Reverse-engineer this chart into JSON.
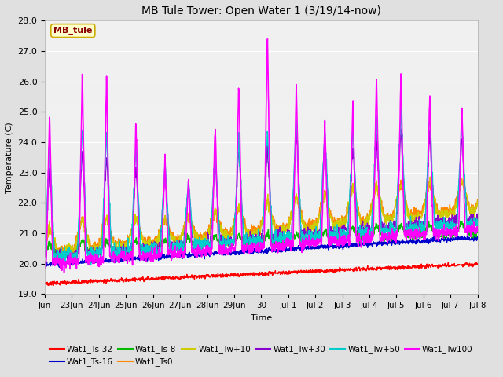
{
  "title": "MB Tule Tower: Open Water 1 (3/19/14-now)",
  "xlabel": "Time",
  "ylabel": "Temperature (C)",
  "ylim": [
    19.0,
    28.0
  ],
  "yticks": [
    19.0,
    20.0,
    21.0,
    22.0,
    23.0,
    24.0,
    25.0,
    26.0,
    27.0,
    28.0
  ],
  "fig_bg_color": "#e0e0e0",
  "plot_bg_color": "#f0f0f0",
  "series_order": [
    "Wat1_Ts-32",
    "Wat1_Ts-16",
    "Wat1_Ts-8",
    "Wat1_Ts0",
    "Wat1_Tw+10",
    "Wat1_Tw+30",
    "Wat1_Tw+50",
    "Wat1_Tw100"
  ],
  "series": {
    "Wat1_Ts-32": {
      "color": "#ff0000",
      "lw": 1.0
    },
    "Wat1_Ts-16": {
      "color": "#0000cc",
      "lw": 1.0
    },
    "Wat1_Ts-8": {
      "color": "#00bb00",
      "lw": 1.0
    },
    "Wat1_Ts0": {
      "color": "#ff8800",
      "lw": 1.0
    },
    "Wat1_Tw+10": {
      "color": "#cccc00",
      "lw": 1.0
    },
    "Wat1_Tw+30": {
      "color": "#8800cc",
      "lw": 1.0
    },
    "Wat1_Tw+50": {
      "color": "#00cccc",
      "lw": 1.0
    },
    "Wat1_Tw100": {
      "color": "#ff00ff",
      "lw": 1.2
    }
  },
  "x_start": 0,
  "x_end": 16,
  "xtick_positions": [
    0,
    1,
    2,
    3,
    4,
    5,
    6,
    7,
    8,
    9,
    10,
    11,
    12,
    13,
    14,
    15,
    16
  ],
  "xtick_labels": [
    "Jun",
    "23Jun",
    "24Jun",
    "25Jun",
    "26Jun",
    "27Jun",
    "28Jun",
    "29Jun",
    "30",
    "Jul 1",
    "Jul 2",
    "Jul 3",
    "Jul 4",
    "Jul 5",
    "Jul 6",
    "Jul 7",
    "Jul 8"
  ],
  "annotation_text": "MB_tule",
  "legend_entries": [
    [
      "Wat1_Ts-32",
      "Wat1_Ts-16",
      "Wat1_Ts-8",
      "Wat1_Ts0",
      "Wat1_Tw+10",
      "Wat1_Tw+30"
    ],
    [
      "Wat1_Tw+50",
      "Wat1_Tw100"
    ]
  ]
}
